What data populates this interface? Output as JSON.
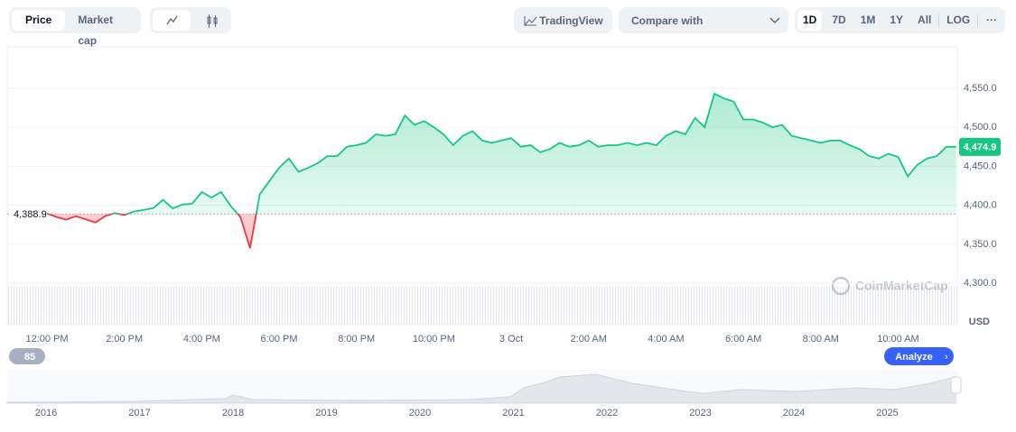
{
  "toolbar": {
    "tabs": [
      "Price",
      "Market cap"
    ],
    "tradingview": "TradingView",
    "compare": "Compare with",
    "ranges": [
      "1D",
      "7D",
      "1M",
      "1Y",
      "All",
      "LOG"
    ]
  },
  "events_count": "85",
  "analyze": "Analyze",
  "watermark": "CoinMarketCap",
  "navigator": {
    "years": [
      "2016",
      "2017",
      "2018",
      "2019",
      "2020",
      "2021",
      "2022",
      "2023",
      "2024",
      "2025"
    ]
  },
  "chart_data": {
    "type": "line",
    "y_axis_unit": "USD",
    "up_color": "#16c784",
    "down_color": "#ea3943",
    "baseline": {
      "value": 4388.9,
      "label": "4,388.9"
    },
    "current_price": {
      "value": 4474.9,
      "label": "4,474.9"
    },
    "categories": [
      null,
      null,
      null,
      null,
      "12:00 PM",
      null,
      null,
      null,
      null,
      null,
      null,
      null,
      "2:00 PM",
      null,
      null,
      null,
      null,
      null,
      null,
      null,
      "4:00 PM",
      null,
      null,
      null,
      null,
      null,
      null,
      null,
      "6:00 PM",
      null,
      null,
      null,
      null,
      null,
      null,
      null,
      "8:00 PM",
      null,
      null,
      null,
      null,
      null,
      null,
      null,
      "10:00 PM",
      null,
      null,
      null,
      null,
      null,
      null,
      null,
      "3 Oct",
      null,
      null,
      null,
      null,
      null,
      null,
      null,
      "2:00 AM",
      null,
      null,
      null,
      null,
      null,
      null,
      null,
      "4:00 AM",
      null,
      null,
      null,
      null,
      null,
      null,
      null,
      "6:00 AM",
      null,
      null,
      null,
      null,
      null,
      null,
      null,
      "8:00 AM",
      null,
      null,
      null,
      null,
      null,
      null,
      null,
      "10:00 AM",
      null,
      null,
      null,
      null,
      null,
      null
    ],
    "values": [
      null,
      null,
      null,
      null,
      4389.6,
      4385,
      4381.5,
      4386,
      4382,
      4378,
      4386,
      4390,
      4387.5,
      4392,
      4394,
      4396.5,
      4407,
      4396,
      4401,
      4402,
      4417,
      4410,
      4417,
      4399,
      4385,
      4345,
      4414,
      4431,
      4448,
      4460,
      4443,
      4448,
      4454,
      4463,
      4463,
      4475,
      4477,
      4480,
      4491,
      4489,
      4491,
      4515,
      4503,
      4508,
      4500,
      4491,
      4477,
      4489,
      4495,
      4483,
      4480,
      4483,
      4486,
      4475,
      4477,
      4468,
      4472,
      4480,
      4475,
      4477,
      4483,
      4475,
      4477,
      4477,
      4480,
      4477,
      4480,
      4477,
      4489,
      4495,
      4491,
      4512,
      4500,
      4543,
      4537,
      4533,
      4510,
      4510,
      4506,
      4500,
      4503,
      4489,
      4486,
      4483,
      4480,
      4483,
      4483,
      4477,
      4472,
      4463,
      4460,
      4466,
      4462,
      4437,
      4452,
      4460,
      4463,
      4475,
      4474.9
    ],
    "ylim": [
      4247,
      4603
    ],
    "yticks": [
      {
        "value": 4300,
        "label": "4,300.0"
      },
      {
        "value": 4350,
        "label": "4,350.0"
      },
      {
        "value": 4400,
        "label": "4,400.0"
      },
      {
        "value": 4450,
        "label": "4,450.0"
      },
      {
        "value": 4500,
        "label": "4,500.0"
      },
      {
        "value": 4550,
        "label": "4,550.0"
      }
    ],
    "grid": true
  }
}
